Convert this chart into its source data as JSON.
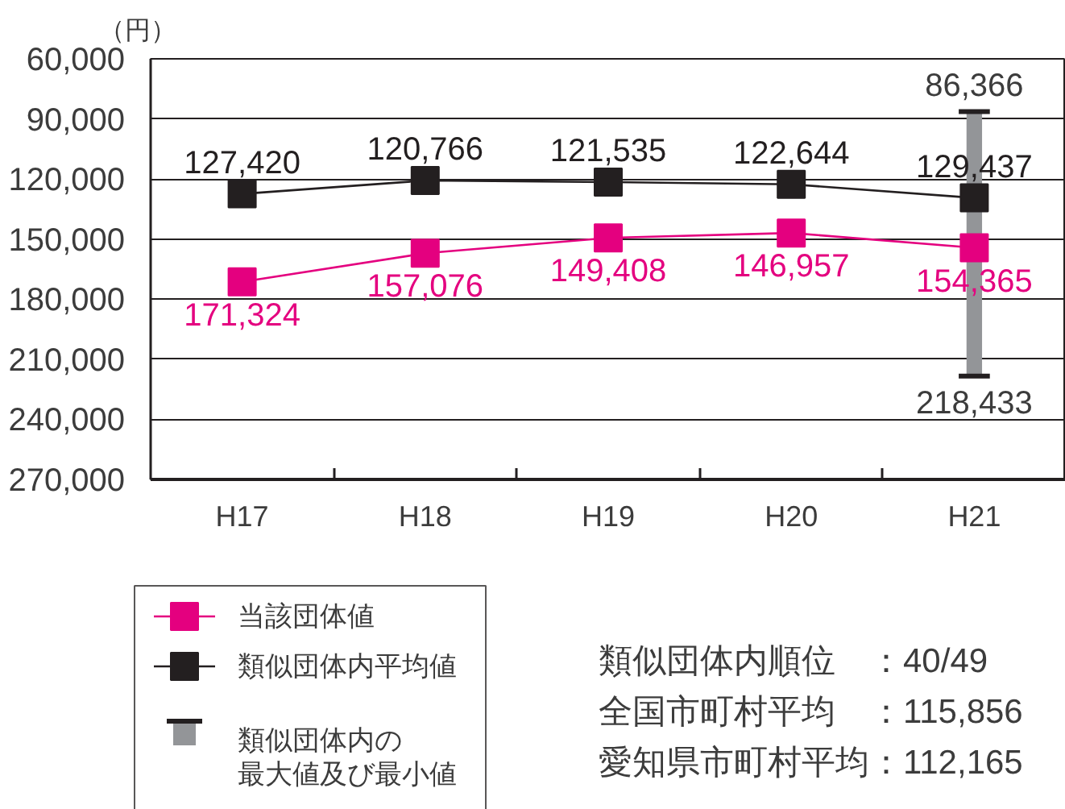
{
  "chart_data": {
    "type": "line",
    "ylabel": "（円）",
    "categories": [
      "H17",
      "H18",
      "H19",
      "H20",
      "H21"
    ],
    "series": [
      {
        "name": "当該団体値",
        "color": "#e4007f",
        "values": [
          171324,
          157076,
          149408,
          146957,
          154365
        ],
        "value_labels": [
          "171,324",
          "157,076",
          "149,408",
          "146,957",
          "154,365"
        ]
      },
      {
        "name": "類似団体内平均値",
        "color": "#231f20",
        "values": [
          127420,
          120766,
          121535,
          122644,
          129437
        ],
        "value_labels": [
          "127,420",
          "120,766",
          "121,535",
          "122,644",
          "129,437"
        ]
      },
      {
        "name": "類似団体内の最大値及び最小値",
        "type": "bar",
        "color": "#939598",
        "base": [
          null,
          null,
          null,
          null,
          86366
        ],
        "values": [
          null,
          null,
          null,
          null,
          132067
        ]
      }
    ],
    "annotations": [
      {
        "text": "86,366",
        "x": "H21",
        "y": 86366
      },
      {
        "text": "218,433",
        "x": "H21",
        "y": 218433
      },
      "類似団体内順位　：40/49",
      "全国市町村平均　：115,856",
      "愛知県市町村平均：112,165"
    ],
    "ylim": [
      270000,
      60000
    ],
    "yticks": [
      {
        "value": 60000,
        "label": "60,000"
      },
      {
        "value": 90000,
        "label": "90,000"
      },
      {
        "value": 120000,
        "label": "120,000"
      },
      {
        "value": 150000,
        "label": "150,000"
      },
      {
        "value": 180000,
        "label": "180,000"
      },
      {
        "value": 210000,
        "label": "210,000"
      },
      {
        "value": 240000,
        "label": "240,000"
      },
      {
        "value": 270000,
        "label": "270,000"
      }
    ],
    "grid": "y",
    "legend": "bottom left",
    "marker": "square",
    "line_style": "solid"
  }
}
